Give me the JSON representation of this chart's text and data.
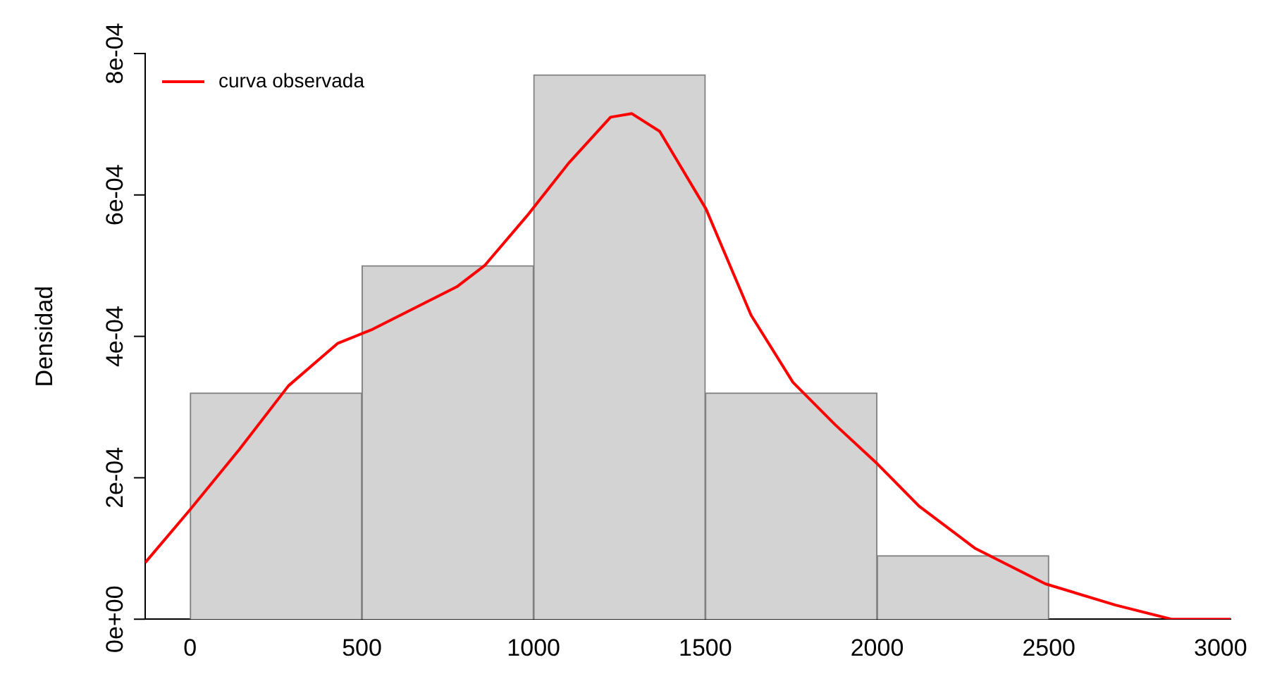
{
  "chart_data": {
    "type": "histogram",
    "ylabel": "Densidad",
    "bins": [
      0,
      500,
      1000,
      1500,
      2000,
      2500
    ],
    "values": [
      0.00032,
      0.0005,
      0.00077,
      0.00032,
      9e-05
    ],
    "color": "#d3d3d3",
    "series": [
      {
        "type": "line",
        "name": "curva observada",
        "color": "#ff0000",
        "x": [
          -131,
          0,
          143,
          286,
          429,
          531,
          653,
          776,
          857,
          980,
          1102,
          1224,
          1286,
          1367,
          1502,
          1633,
          1755,
          1878,
          2000,
          2122,
          2286,
          2490,
          2694,
          2857,
          3029
        ],
        "values": [
          8e-05,
          0.000155,
          0.00024,
          0.00033,
          0.00039,
          0.00041,
          0.00044,
          0.00047,
          0.0005,
          0.00057,
          0.000645,
          0.00071,
          0.000715,
          0.00069,
          0.00058,
          0.00043,
          0.000335,
          0.000275,
          0.00022,
          0.00016,
          0.0001,
          5e-05,
          2e-05,
          0,
          0
        ]
      }
    ],
    "xlim": [
      -131,
      3029
    ],
    "xticks": [
      0,
      500,
      1000,
      1500,
      2000,
      2500,
      3000
    ],
    "ylim": [
      0,
      0.0008
    ],
    "yticks": [
      {
        "value": 0,
        "label": "0e+00"
      },
      {
        "value": 0.0002,
        "label": "2e-04"
      },
      {
        "value": 0.0004,
        "label": "4e-04"
      },
      {
        "value": 0.0006,
        "label": "6e-04"
      },
      {
        "value": 0.0008,
        "label": "8e-04"
      }
    ],
    "legend": "top left",
    "grid": false
  }
}
